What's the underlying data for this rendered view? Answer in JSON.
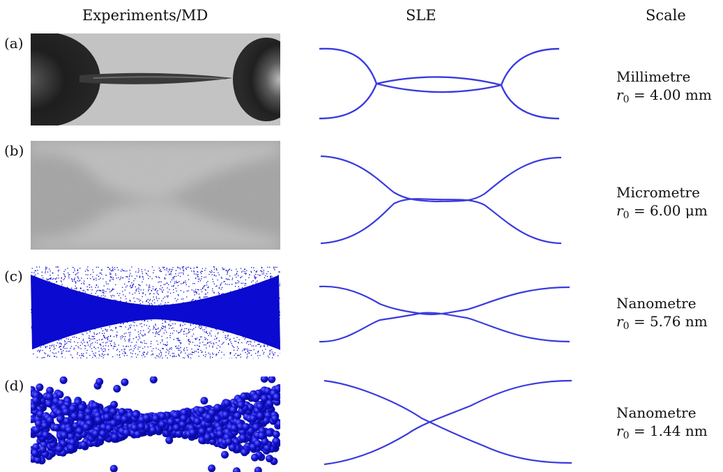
{
  "headers": {
    "experiments": "Experiments/MD",
    "sle": "SLE",
    "scale": "Scale"
  },
  "panels": [
    {
      "label": "(a)",
      "scale_name": "Millimetre",
      "r0_symbol": "r",
      "r0_sub": "0",
      "r0_value": "= 4.00 mm"
    },
    {
      "label": "(b)",
      "scale_name": "Micrometre",
      "r0_symbol": "r",
      "r0_sub": "0",
      "r0_value": "= 6.00 μm"
    },
    {
      "label": "(c)",
      "scale_name": "Nanometre",
      "r0_symbol": "r",
      "r0_sub": "0",
      "r0_value": "= 5.76 nm"
    },
    {
      "label": "(d)",
      "scale_name": "Nanometre",
      "r0_symbol": "r",
      "r0_sub": "0",
      "r0_value": "= 1.44 nm"
    }
  ],
  "colors": {
    "sle_curve": "#3a3ae0",
    "md_particles": "#0a0ad0",
    "photo_dark": "#2a2a2a",
    "photo_light": "#c4c4c4",
    "micro_bg": "#a9a9a9"
  }
}
